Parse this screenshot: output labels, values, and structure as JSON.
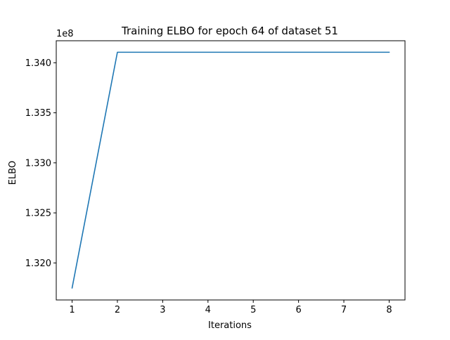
{
  "chart_data": {
    "type": "line",
    "title": "Training ELBO for epoch 64 of dataset 51",
    "xlabel": "Iterations",
    "ylabel": "ELBO",
    "y_offset_label": "1e8",
    "x": [
      1,
      2,
      3,
      4,
      5,
      6,
      7,
      8
    ],
    "series": [
      {
        "values": [
          131750000,
          134105000,
          134105000,
          134105000,
          134105000,
          134105000,
          134105000,
          134105000
        ],
        "color": "#1f77b4"
      }
    ],
    "xlim": [
      0.65,
      8.35
    ],
    "ylim": [
      131630000,
      134220000
    ],
    "x_ticks": [
      {
        "value": 1,
        "label": "1"
      },
      {
        "value": 2,
        "label": "2"
      },
      {
        "value": 3,
        "label": "3"
      },
      {
        "value": 4,
        "label": "4"
      },
      {
        "value": 5,
        "label": "5"
      },
      {
        "value": 6,
        "label": "6"
      },
      {
        "value": 7,
        "label": "7"
      },
      {
        "value": 8,
        "label": "8"
      }
    ],
    "y_ticks": [
      {
        "value": 132000000,
        "label": "1.320"
      },
      {
        "value": 132500000,
        "label": "1.325"
      },
      {
        "value": 133000000,
        "label": "1.330"
      },
      {
        "value": 133500000,
        "label": "1.335"
      },
      {
        "value": 134000000,
        "label": "1.340"
      }
    ],
    "grid": false,
    "legend": "none"
  }
}
